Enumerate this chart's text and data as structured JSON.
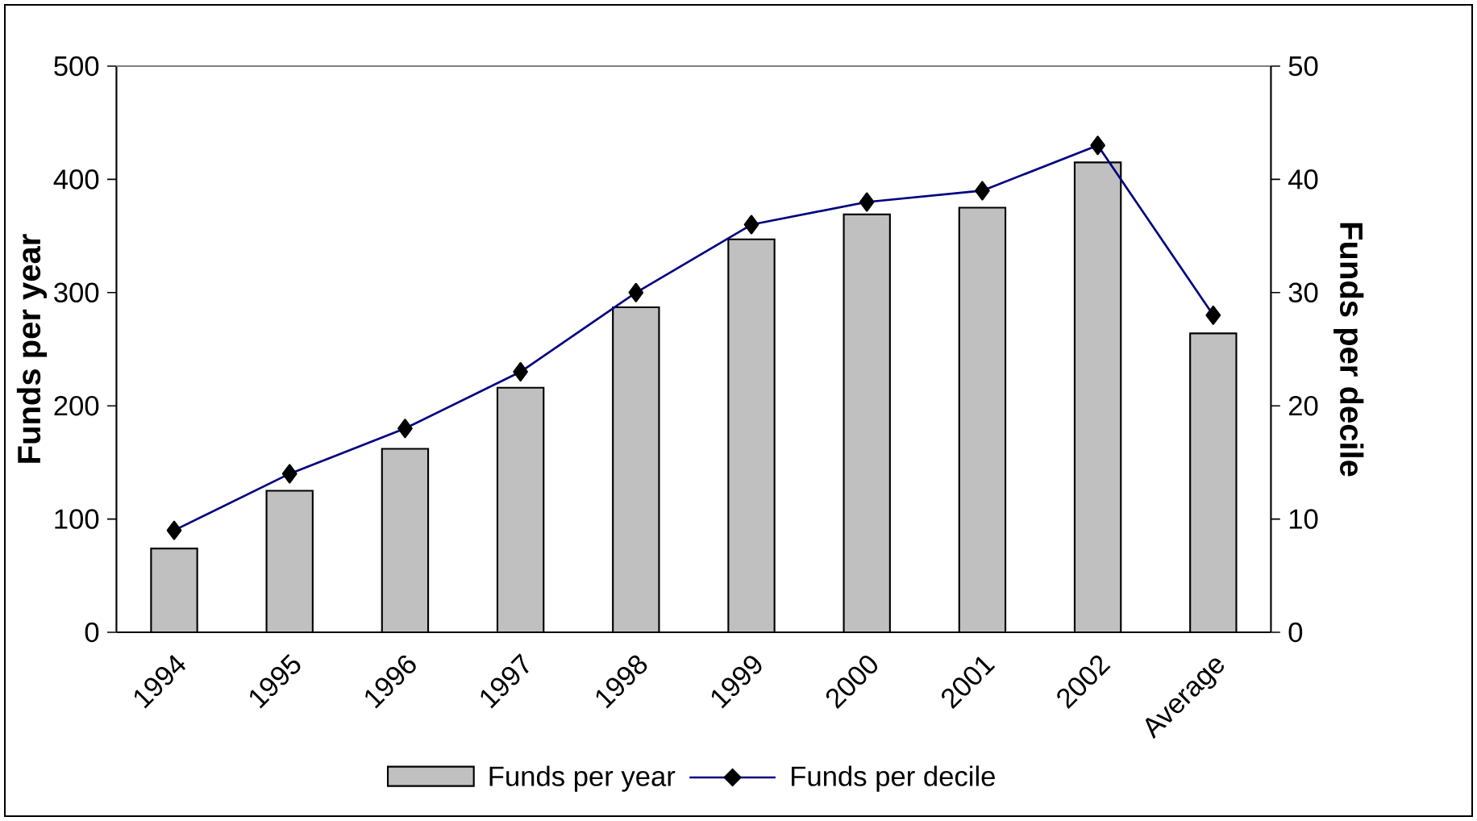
{
  "chart_data": {
    "type": "bar",
    "categories": [
      "1994",
      "1995",
      "1996",
      "1997",
      "1998",
      "1999",
      "2000",
      "2001",
      "2002",
      "Average"
    ],
    "series": [
      {
        "name": "Funds per year",
        "color": "#c0c0c0",
        "values": [
          74,
          125,
          162,
          216,
          287,
          347,
          369,
          375,
          415,
          264
        ]
      },
      {
        "name": "Funds per decile",
        "type": "line",
        "axis": "y2",
        "color": "#000080",
        "values": [
          9,
          14,
          18,
          23,
          30,
          36,
          38,
          39,
          43,
          28
        ]
      }
    ],
    "ylabel": "Funds per year",
    "y2label": "Funds per decile",
    "ylim": [
      0,
      500
    ],
    "yticks": [
      0,
      100,
      200,
      300,
      400,
      500
    ],
    "y2lim": [
      0,
      50
    ],
    "y2ticks": [
      0,
      10,
      20,
      30,
      40,
      50
    ],
    "marker": "diamond",
    "legend": "bottom"
  }
}
